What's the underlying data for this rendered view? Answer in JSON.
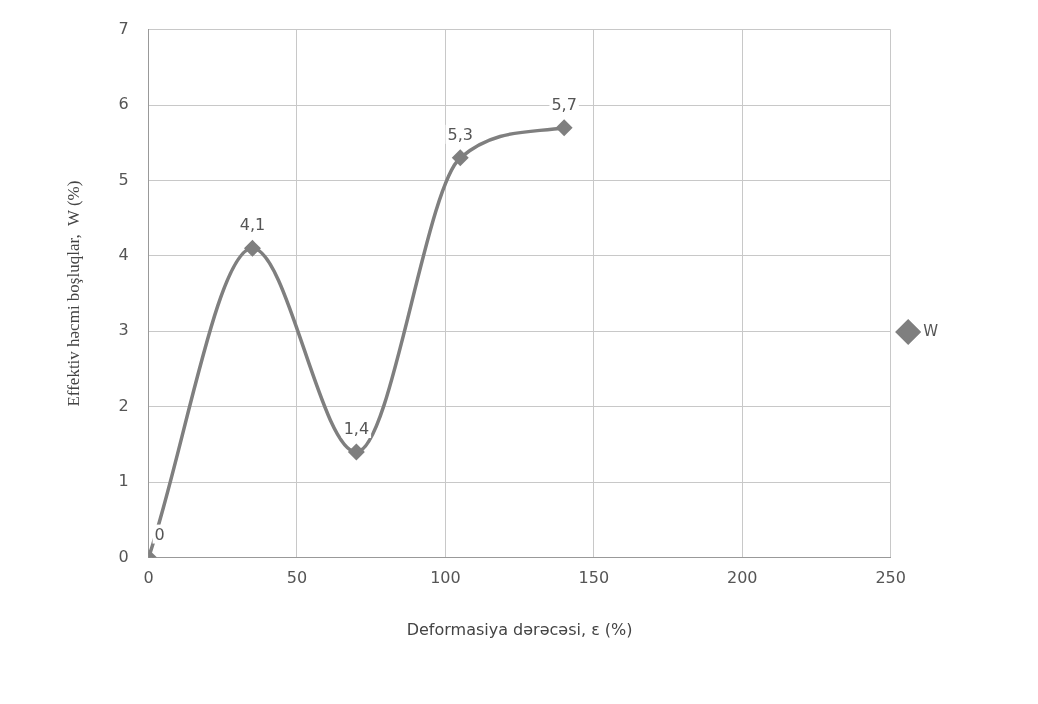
{
  "chart_data": {
    "type": "line",
    "xlabel": "Deformasiya dərəcəsi, ε (%)",
    "ylabel": "Effektiv həcmi boşluqlar,  W (%)",
    "x": [
      0,
      35,
      70,
      105,
      140
    ],
    "series": [
      {
        "name": "W",
        "color": "#7f7f7f",
        "values": [
          0,
          4.1,
          1.4,
          5.3,
          5.7
        ],
        "value_labels": [
          "0",
          "4,1",
          "1,4",
          "5,3",
          "5,7"
        ]
      }
    ],
    "xlim": [
      0,
      250
    ],
    "xticks": [
      0,
      50,
      100,
      150,
      200,
      250
    ],
    "ylim": [
      0,
      7
    ],
    "yticks": [
      0,
      1,
      2,
      3,
      4,
      5,
      6,
      7
    ],
    "grid": true,
    "legend": "right",
    "marker": "diamond",
    "line_style": "solid"
  }
}
